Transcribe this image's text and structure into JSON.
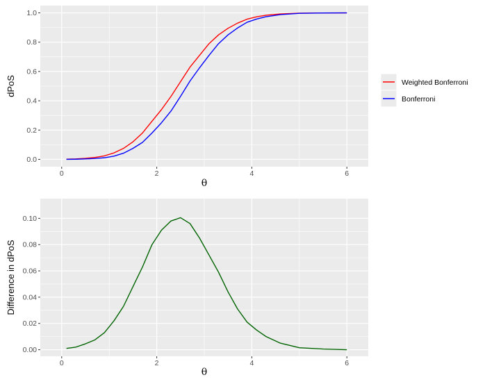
{
  "chart_data": [
    {
      "type": "line",
      "xlabel": "θ",
      "ylabel": "dPoS",
      "xlim": [
        0,
        6
      ],
      "ylim": [
        0,
        1.0
      ],
      "x_ticks": [
        0,
        2,
        4,
        6
      ],
      "x_tick_labels": [
        "0",
        "2",
        "4",
        "6"
      ],
      "y_ticks": [
        0.0,
        0.2,
        0.4,
        0.6,
        0.8,
        1.0
      ],
      "y_tick_labels": [
        "0.0",
        "0.2",
        "0.4",
        "0.6",
        "0.8",
        "1.0"
      ],
      "grid": true,
      "legend": "right",
      "panel_background": "#ebebeb",
      "x": [
        0.1,
        0.3,
        0.5,
        0.7,
        0.9,
        1.1,
        1.3,
        1.5,
        1.7,
        1.9,
        2.1,
        2.3,
        2.5,
        2.7,
        2.9,
        3.1,
        3.3,
        3.5,
        3.7,
        3.9,
        4.1,
        4.3,
        4.6,
        5.0,
        5.5,
        6.0
      ],
      "series": [
        {
          "name": "Weighted Bonferroni",
          "color": "#ff0000",
          "values": [
            0.001,
            0.003,
            0.007,
            0.013,
            0.024,
            0.044,
            0.075,
            0.12,
            0.18,
            0.26,
            0.34,
            0.43,
            0.53,
            0.63,
            0.71,
            0.79,
            0.85,
            0.895,
            0.93,
            0.957,
            0.973,
            0.984,
            0.993,
            0.998,
            0.9995,
            1.0
          ]
        },
        {
          "name": "Bonferroni",
          "color": "#0000ff",
          "values": [
            0.0,
            0.001,
            0.003,
            0.006,
            0.011,
            0.022,
            0.042,
            0.075,
            0.116,
            0.18,
            0.25,
            0.33,
            0.43,
            0.535,
            0.625,
            0.71,
            0.79,
            0.85,
            0.897,
            0.936,
            0.958,
            0.974,
            0.988,
            0.997,
            0.9993,
            1.0
          ]
        }
      ]
    },
    {
      "type": "line",
      "xlabel": "θ",
      "ylabel": "Difference in dPoS",
      "xlim": [
        0,
        6
      ],
      "ylim": [
        0,
        0.11
      ],
      "x_ticks": [
        0,
        2,
        4,
        6
      ],
      "x_tick_labels": [
        "0",
        "2",
        "4",
        "6"
      ],
      "y_ticks": [
        0.0,
        0.02,
        0.04,
        0.06,
        0.08,
        0.1
      ],
      "y_tick_labels": [
        "0.00",
        "0.02",
        "0.04",
        "0.06",
        "0.08",
        "0.10"
      ],
      "grid": true,
      "panel_background": "#ebebeb",
      "x": [
        0.1,
        0.3,
        0.5,
        0.7,
        0.9,
        1.1,
        1.3,
        1.5,
        1.7,
        1.9,
        2.1,
        2.3,
        2.5,
        2.7,
        2.9,
        3.1,
        3.3,
        3.5,
        3.7,
        3.9,
        4.1,
        4.3,
        4.6,
        5.0,
        5.5,
        6.0
      ],
      "series": [
        {
          "color": "#006400",
          "values": [
            0.001,
            0.002,
            0.0045,
            0.0075,
            0.013,
            0.022,
            0.033,
            0.048,
            0.063,
            0.08,
            0.091,
            0.098,
            0.1005,
            0.096,
            0.085,
            0.072,
            0.059,
            0.044,
            0.031,
            0.021,
            0.015,
            0.01,
            0.005,
            0.0015,
            0.0005,
            0.0
          ]
        }
      ]
    }
  ]
}
